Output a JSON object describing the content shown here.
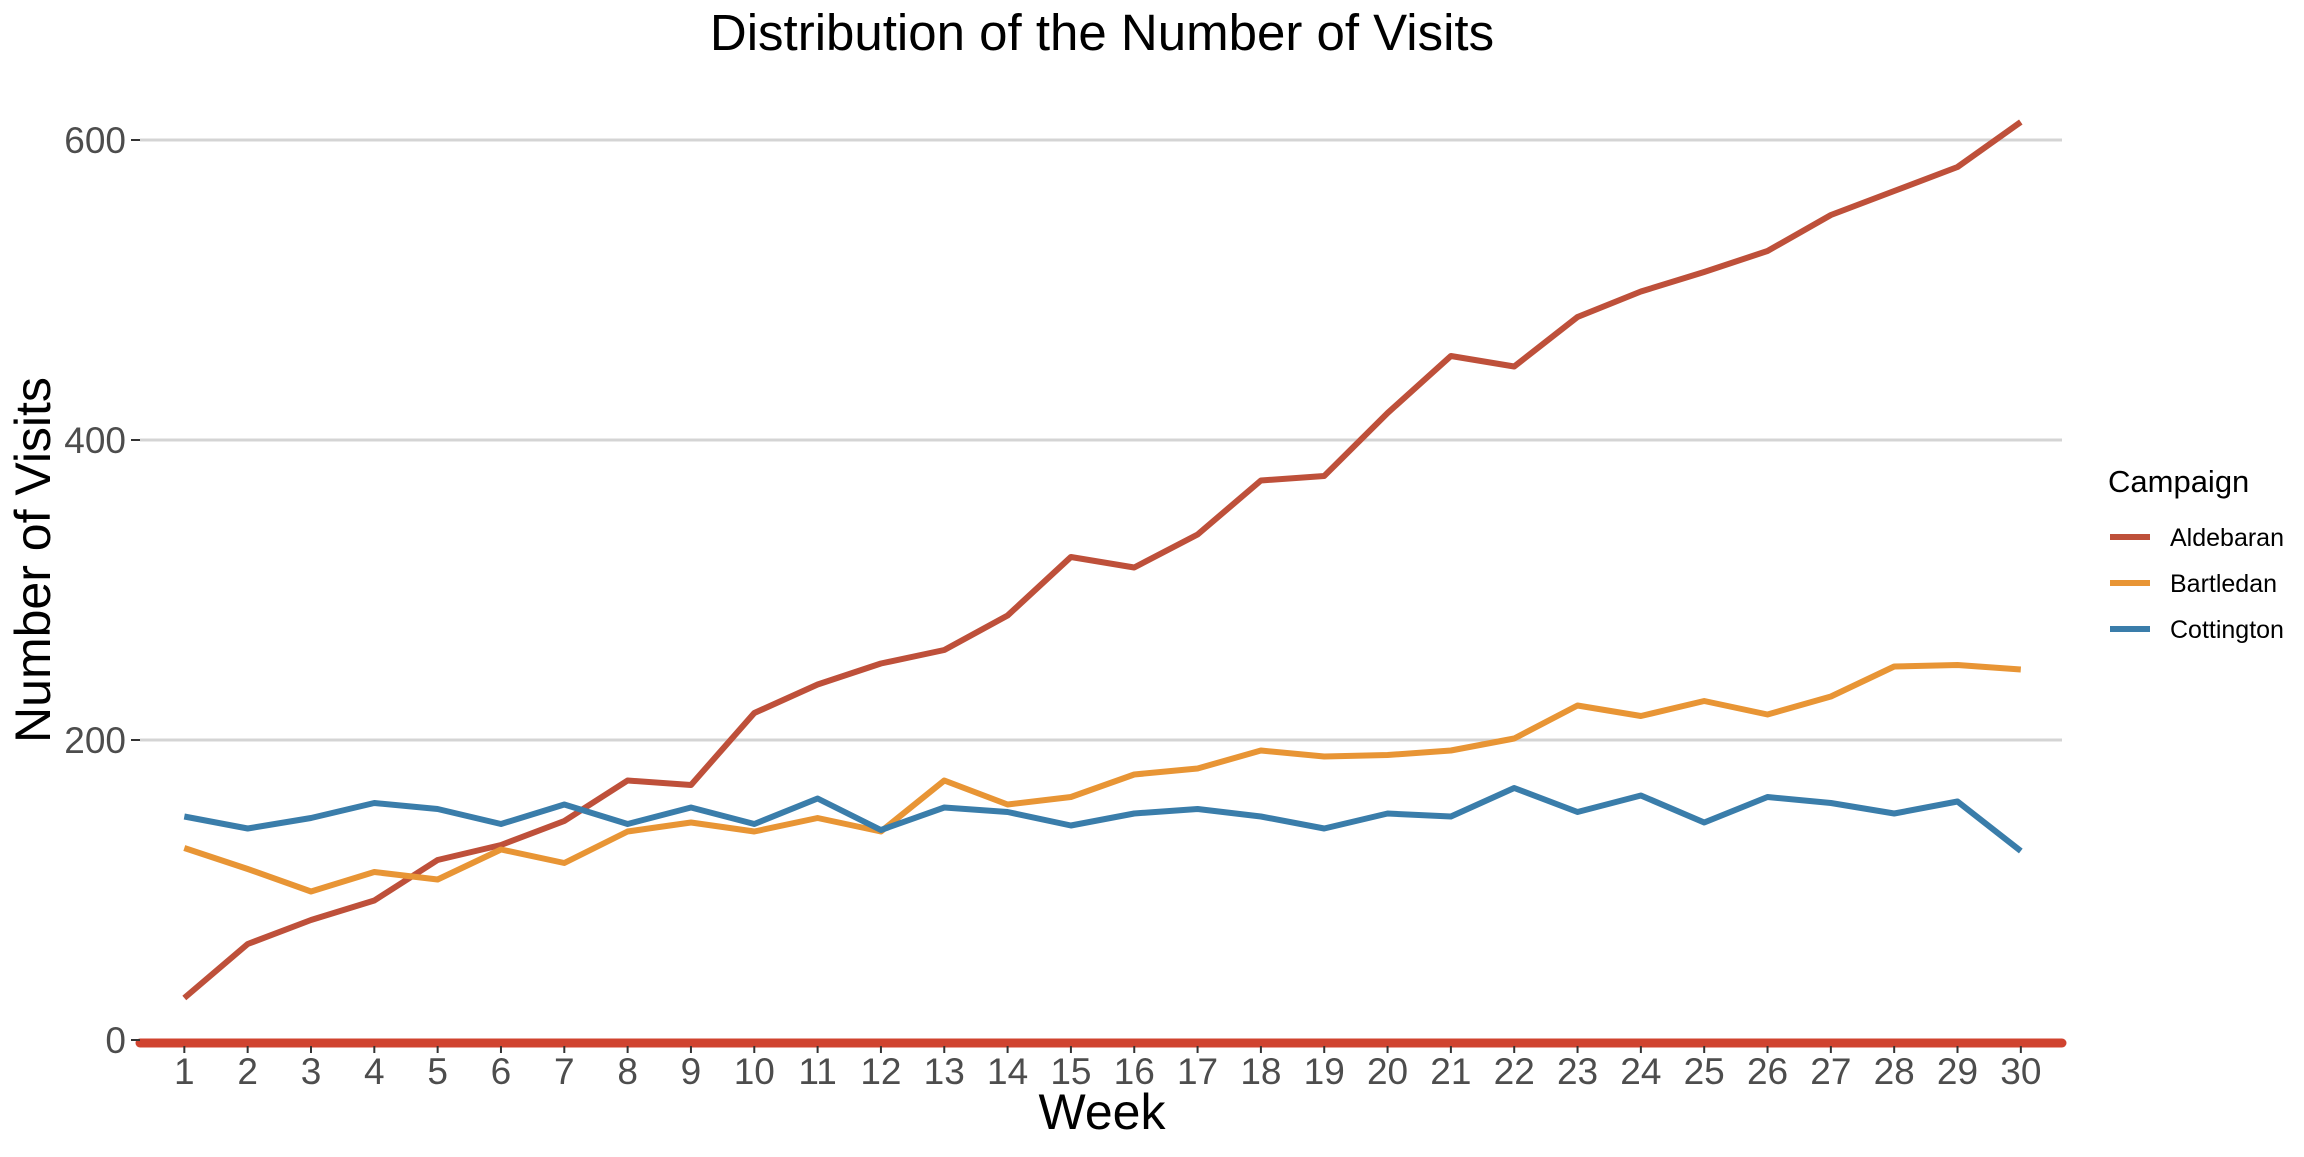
{
  "chart_data": {
    "type": "line",
    "title": "Distribution of the Number of Visits",
    "xlabel": "Week",
    "ylabel": "Number of Visits",
    "x": [
      1,
      2,
      3,
      4,
      5,
      6,
      7,
      8,
      9,
      10,
      11,
      12,
      13,
      14,
      15,
      16,
      17,
      18,
      19,
      20,
      21,
      22,
      23,
      24,
      25,
      26,
      27,
      28,
      29,
      30
    ],
    "x_tick_labels": [
      "1",
      "2",
      "3",
      "4",
      "5",
      "6",
      "7",
      "8",
      "9",
      "10",
      "11",
      "12",
      "13",
      "14",
      "15",
      "16",
      "17",
      "18",
      "19",
      "20",
      "21",
      "22",
      "23",
      "24",
      "25",
      "26",
      "27",
      "28",
      "29",
      "30"
    ],
    "y_ticks": [
      0,
      200,
      400,
      600
    ],
    "y_tick_labels": [
      "0",
      "200",
      "400",
      "600"
    ],
    "xlim": [
      0.3,
      30.65
    ],
    "ylim": [
      -8,
      630
    ],
    "grid": "horizontal major lines",
    "legend": {
      "title": "Campaign",
      "position": "right"
    },
    "series": [
      {
        "name": "Aldebaran",
        "color": "#BE503A",
        "values": [
          28,
          64,
          80,
          93,
          120,
          130,
          146,
          173,
          170,
          218,
          237,
          251,
          260,
          283,
          322,
          315,
          337,
          373,
          376,
          418,
          456,
          449,
          482,
          499,
          512,
          526,
          550,
          566,
          582,
          612
        ]
      },
      {
        "name": "Bartledan",
        "color": "#E89535",
        "values": [
          128,
          114,
          99,
          112,
          107,
          127,
          118,
          139,
          145,
          139,
          148,
          139,
          173,
          157,
          162,
          177,
          181,
          193,
          189,
          190,
          193,
          201,
          223,
          216,
          226,
          217,
          229,
          249,
          250,
          247
        ]
      },
      {
        "name": "Cottington",
        "color": "#3A7DAA",
        "values": [
          149,
          141,
          148,
          158,
          154,
          144,
          157,
          144,
          155,
          144,
          161,
          140,
          155,
          152,
          143,
          151,
          154,
          149,
          141,
          151,
          149,
          168,
          152,
          163,
          145,
          162,
          158,
          151,
          159,
          126
        ]
      }
    ],
    "baseline_color": "#D0432F"
  }
}
